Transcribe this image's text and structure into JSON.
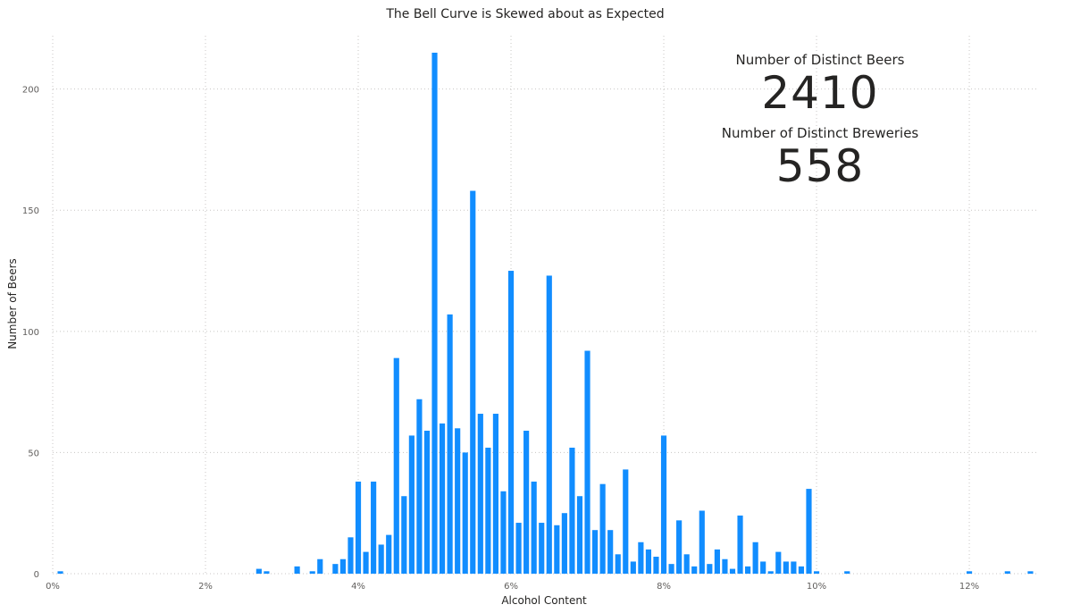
{
  "chart_data": {
    "type": "bar",
    "title": "The Bell Curve is Skewed about as Expected",
    "xlabel": "Alcohol Content",
    "ylabel": "Number of Beers",
    "xlim": [
      0.0,
      0.129
    ],
    "ylim": [
      0,
      222
    ],
    "x_ticks": [
      0,
      0.02,
      0.04,
      0.06,
      0.08,
      0.1,
      0.12
    ],
    "x_tick_labels": [
      "0%",
      "2%",
      "4%",
      "6%",
      "8%",
      "10%",
      "12%"
    ],
    "y_ticks": [
      0,
      50,
      100,
      150,
      200
    ],
    "y_tick_labels": [
      "0",
      "50",
      "100",
      "150",
      "200"
    ],
    "grid": true,
    "bar_color": "#118dff",
    "x": [
      0.001,
      0.027,
      0.028,
      0.032,
      0.034,
      0.035,
      0.037,
      0.038,
      0.039,
      0.04,
      0.041,
      0.042,
      0.043,
      0.044,
      0.045,
      0.046,
      0.047,
      0.048,
      0.049,
      0.05,
      0.051,
      0.052,
      0.053,
      0.054,
      0.055,
      0.056,
      0.057,
      0.058,
      0.059,
      0.06,
      0.061,
      0.062,
      0.063,
      0.064,
      0.065,
      0.066,
      0.067,
      0.068,
      0.069,
      0.07,
      0.071,
      0.072,
      0.073,
      0.074,
      0.075,
      0.076,
      0.077,
      0.078,
      0.079,
      0.08,
      0.081,
      0.082,
      0.083,
      0.084,
      0.085,
      0.086,
      0.087,
      0.088,
      0.089,
      0.09,
      0.091,
      0.092,
      0.093,
      0.094,
      0.095,
      0.096,
      0.097,
      0.098,
      0.099,
      0.1,
      0.104,
      0.12,
      0.125,
      0.128
    ],
    "values": [
      1,
      2,
      1,
      3,
      1,
      6,
      4,
      6,
      15,
      38,
      9,
      38,
      12,
      16,
      89,
      32,
      57,
      72,
      59,
      215,
      62,
      107,
      60,
      50,
      158,
      66,
      52,
      66,
      34,
      125,
      21,
      59,
      38,
      21,
      123,
      20,
      25,
      52,
      32,
      92,
      18,
      37,
      18,
      8,
      43,
      5,
      13,
      10,
      7,
      57,
      4,
      22,
      8,
      3,
      26,
      4,
      10,
      6,
      2,
      24,
      3,
      13,
      5,
      1,
      9,
      5,
      5,
      3,
      35,
      1,
      1,
      1,
      1,
      1
    ]
  },
  "cards": [
    {
      "label": "Number of Distinct Beers",
      "value": "2410"
    },
    {
      "label": "Number of Distinct Breweries",
      "value": "558"
    }
  ]
}
